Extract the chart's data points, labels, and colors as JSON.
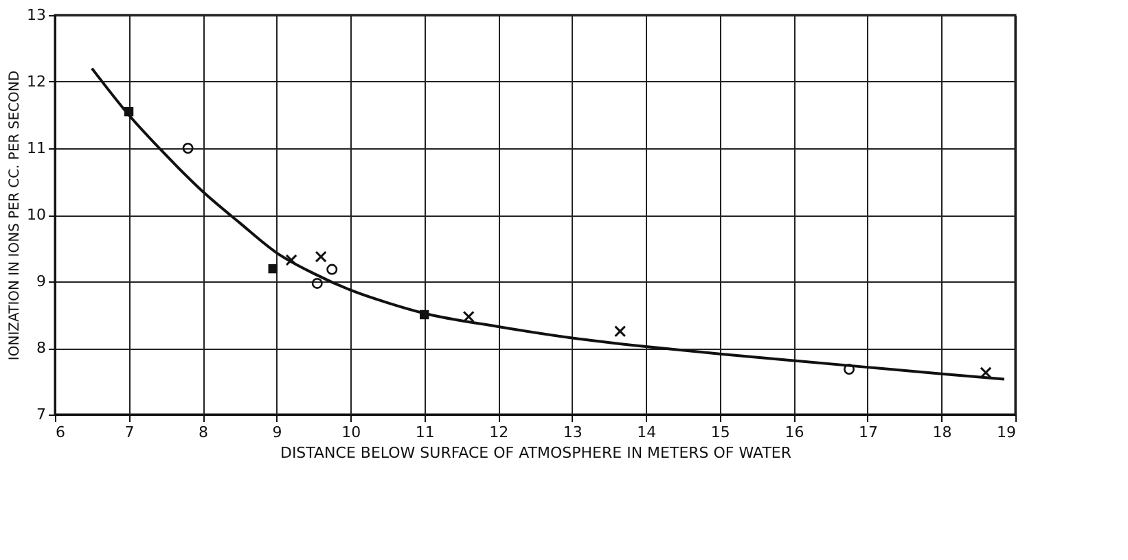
{
  "chart_data": {
    "type": "scatter",
    "xlabel": "DISTANCE BELOW SURFACE OF ATMOSPHERE IN METERS OF WATER",
    "ylabel": "IONIZATION IN IONS PER CC. PER SECOND",
    "xlim": [
      6,
      19
    ],
    "xticks": [
      6,
      7,
      8,
      9,
      10,
      11,
      12,
      13,
      14,
      15,
      16,
      17,
      18,
      19
    ],
    "ylim": [
      7,
      13
    ],
    "yticks": [
      7,
      8,
      9,
      10,
      11,
      12,
      13
    ],
    "grid": true,
    "series": [
      {
        "type": "line",
        "color": "#111111",
        "marker": "none",
        "line_style": "solid",
        "x": [
          6.5,
          7,
          7.5,
          8,
          8.5,
          9,
          9.5,
          10,
          10.5,
          11,
          12,
          13,
          14,
          15,
          16,
          17,
          18,
          18.85
        ],
        "values": [
          12.2,
          11.5,
          10.9,
          10.35,
          9.88,
          9.43,
          9.12,
          8.87,
          8.68,
          8.52,
          8.32,
          8.15,
          8.02,
          7.91,
          7.81,
          7.71,
          7.61,
          7.53
        ]
      },
      {
        "color": "#111111",
        "marker": "circle",
        "x": [
          7.8,
          9.55,
          9.75,
          16.75
        ],
        "values": [
          11.0,
          8.97,
          9.18,
          7.68
        ]
      },
      {
        "color": "#111111",
        "marker": "cross",
        "x": [
          9.2,
          9.6,
          11.6,
          13.65,
          18.6
        ],
        "values": [
          9.32,
          9.37,
          8.47,
          8.25,
          7.63
        ]
      },
      {
        "color": "#111111",
        "marker": "square",
        "x": [
          7.0,
          8.95,
          11.0
        ],
        "values": [
          11.55,
          9.19,
          8.5
        ]
      }
    ]
  }
}
